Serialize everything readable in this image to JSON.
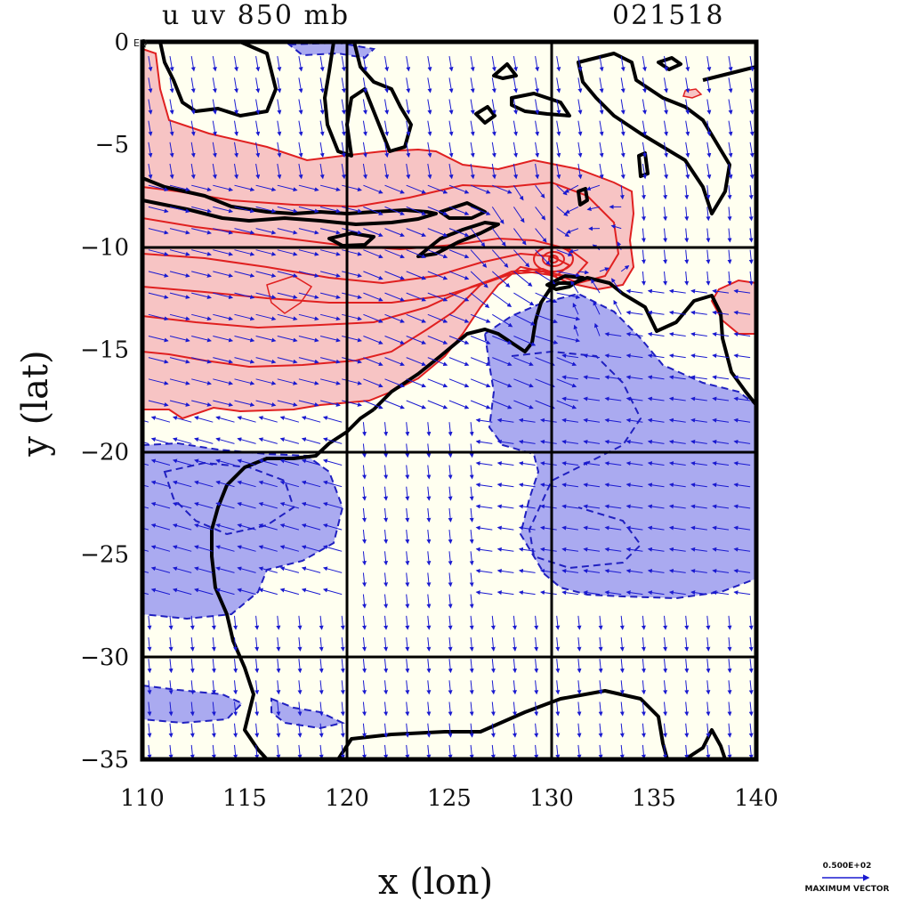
{
  "title": {
    "left": "u uv 850 mb",
    "right": "021518"
  },
  "axes": {
    "xlabel": "x (lon)",
    "ylabel": "y (lat)",
    "xticks": [
      "110",
      "115",
      "120",
      "125",
      "130",
      "135",
      "140"
    ],
    "yticks": [
      "0",
      "-5",
      "-10",
      "-15",
      "-20",
      "-25",
      "-30",
      "-35"
    ],
    "y0_suffix": "EQ",
    "xlim": [
      110,
      140
    ],
    "ylim": [
      -35,
      0
    ],
    "gridlines_lon": [
      120,
      130
    ],
    "gridlines_lat": [
      -10,
      -20,
      -30
    ]
  },
  "vector_legend": {
    "value": "0.500E+02",
    "label": "MAXIMUM VECTOR"
  },
  "colors": {
    "positive_fill": "#f7c4c4",
    "positive_contour": "#e02020",
    "negative_fill": "#aaaaf0",
    "negative_contour": "#2020c0",
    "land_background": "#fffff0",
    "coastline": "#000000",
    "vectors": "#1a1ad0"
  },
  "chart_data": {
    "type": "map",
    "field": "u wind with uv vectors at 850 mb",
    "date_code": "021518",
    "region": {
      "lon": [
        110,
        140
      ],
      "lat": [
        -35,
        0
      ]
    },
    "positive_u_regions": [
      {
        "name": "westerly band",
        "lon_range": [
          110,
          132.5
        ],
        "lat_range": [
          -18,
          -1
        ]
      },
      {
        "name": "east coast patch",
        "lon_range": [
          138,
          140
        ],
        "lat_range": [
          -14.5,
          -11.5
        ]
      }
    ],
    "negative_u_regions": [
      {
        "name": "northern Australia",
        "lon_range": [
          127,
          140
        ],
        "lat_range": [
          -27,
          -12.5
        ]
      },
      {
        "name": "west coast",
        "lon_range": [
          110,
          120
        ],
        "lat_range": [
          -28,
          -20
        ]
      },
      {
        "name": "southwest",
        "lon_range": [
          110,
          119
        ],
        "lat_range": [
          -33,
          -31
        ]
      }
    ],
    "cyclonic_center": {
      "lon": 130,
      "lat": -10.7
    }
  }
}
